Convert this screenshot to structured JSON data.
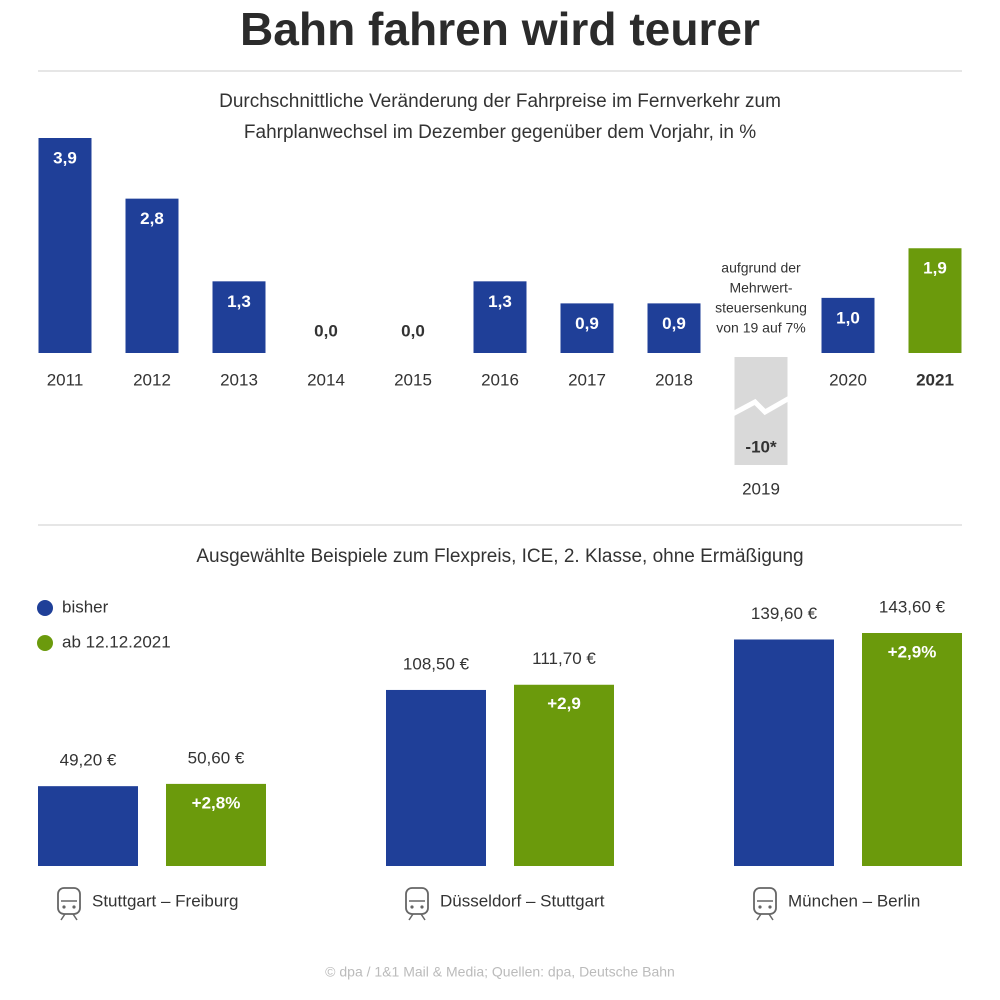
{
  "title": "Bahn fahren wird teurer",
  "source": "© dpa / 1&1 Mail & Media;  Quellen: dpa, Deutsche Bahn",
  "chart_data": [
    {
      "type": "bar",
      "subtitle": [
        "Durchschnittliche Veränderung der Fahrpreise im Fernverkehr zum",
        "Fahrplanwechsel im Dezember gegenüber dem Vorjahr, in %"
      ],
      "categories": [
        "2011",
        "2012",
        "2013",
        "2014",
        "2015",
        "2016",
        "2017",
        "2018",
        "2019",
        "2020",
        "2021"
      ],
      "values": [
        3.9,
        2.8,
        1.3,
        0,
        0,
        1.3,
        0.9,
        0.9,
        -10,
        1.0,
        1.9
      ],
      "value_labels": [
        "3,9",
        "2,8",
        "1,3",
        "0,0",
        "0,0",
        "1,3",
        "0,9",
        "0,9",
        "-10*",
        "1,0",
        "1,9"
      ],
      "colors": [
        "#1f3f98",
        "#1f3f98",
        "#1f3f98",
        "#1f3f98",
        "#1f3f98",
        "#1f3f98",
        "#1f3f98",
        "#1f3f98",
        "#d9d9d9",
        "#1f3f98",
        "#6b9a0c"
      ],
      "annotation": [
        "aufgrund der",
        "Mehrwert-",
        "steuersenkung",
        "von 19 auf 7%"
      ]
    },
    {
      "type": "grouped-bar",
      "title": "Ausgewählte Beispiele zum Flexpreis, ICE, 2. Klasse, ohne Ermäßigung",
      "categories": [
        "Stuttgart – Freiburg",
        "Düsseldorf – Stuttgart",
        "München – Berlin"
      ],
      "series": [
        {
          "name": "bisher",
          "color": "#1f3f98",
          "values": [
            49.2,
            108.5,
            139.6
          ],
          "value_labels": [
            "49,20 €",
            "108,50 €",
            "139,60 €"
          ]
        },
        {
          "name": "ab 12.12.2021",
          "color": "#6b9a0c",
          "values": [
            50.6,
            111.7,
            143.6
          ],
          "value_labels": [
            "50,60 €",
            "111,70 €",
            "143,60 €"
          ]
        }
      ],
      "changes": [
        2.8,
        2.9,
        2.9
      ],
      "change_labels": [
        "+2,8%",
        "+2,9",
        "+2,9%"
      ]
    }
  ]
}
